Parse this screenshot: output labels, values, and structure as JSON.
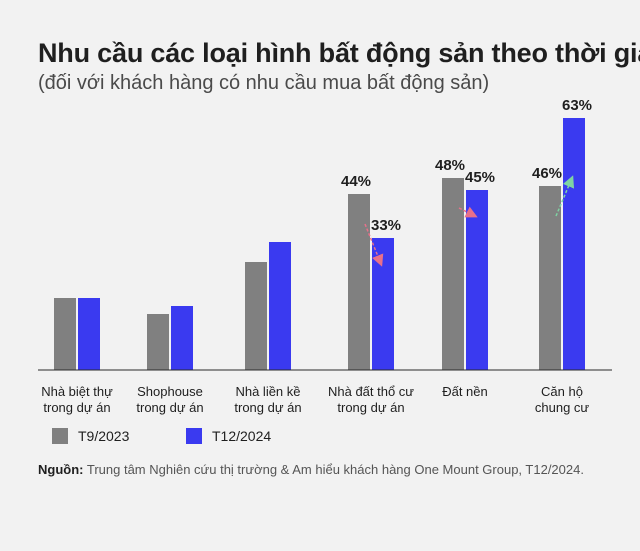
{
  "header": {
    "title": "Nhu cầu các loại hình bất động sản theo thời gian",
    "subtitle": "(đối với khách hàng có nhu cầu mua bất động sản)"
  },
  "source": {
    "label": "Nguồn:",
    "text": " Trung tâm Nghiên cứu thị trường & Am hiểu khách hàng One Mount Group, T12/2024."
  },
  "colors": {
    "series1": "#808080",
    "series2": "#3a3af0",
    "arrow_down": "#e8708a",
    "arrow_up": "#7ed3a3"
  },
  "chart_data": {
    "type": "bar",
    "title": "Nhu cầu các loại hình bất động sản theo thời gian",
    "categories": [
      [
        "Nhà biệt thự",
        "trong dự án"
      ],
      [
        "Shophouse",
        "trong dự án"
      ],
      [
        "Nhà liền kề",
        "trong dự án"
      ],
      [
        "Nhà đất thổ cư",
        "trong dự án"
      ],
      [
        "Đất nền"
      ],
      [
        "Căn hộ",
        "chung cư"
      ]
    ],
    "series": [
      {
        "name": "T9/2023",
        "values": [
          18,
          14,
          27,
          44,
          48,
          46
        ]
      },
      {
        "name": "T12/2024",
        "values": [
          18,
          16,
          32,
          33,
          45,
          63
        ]
      }
    ],
    "data_labels": [
      [
        null,
        null,
        null,
        "44%",
        "48%",
        "46%"
      ],
      [
        null,
        null,
        null,
        "33%",
        "45%",
        "63%"
      ]
    ],
    "trend_arrows": [
      "",
      "",
      "",
      "down",
      "down",
      "up"
    ],
    "ylim": [
      0,
      70
    ],
    "grid": false,
    "legend_position": "bottom-left"
  }
}
